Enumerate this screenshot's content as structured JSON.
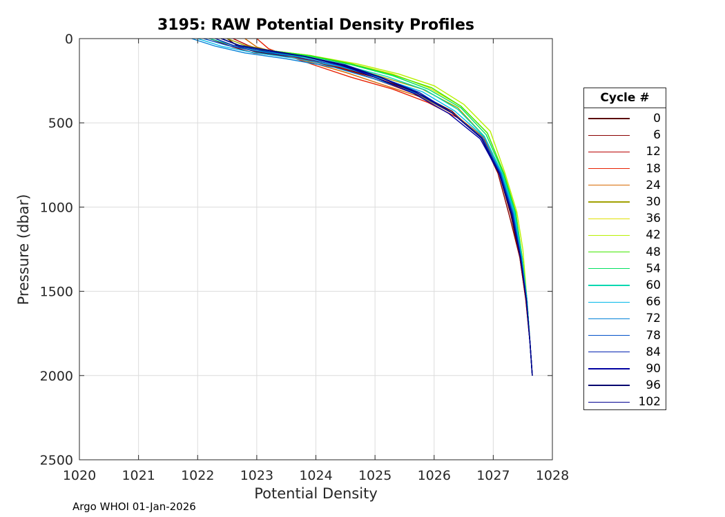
{
  "footer": "Argo WHOI 01-Jan-2026",
  "legend_title": "Cycle #",
  "chart_data": {
    "type": "line",
    "title": "3195: RAW Potential Density Profiles",
    "xlabel": "Potential Density",
    "ylabel": "Pressure (dbar)",
    "xlim": [
      1020,
      1028
    ],
    "ylim": [
      0,
      2500
    ],
    "y_reversed": true,
    "grid": true,
    "legend_position": "outside-right",
    "x_ticks": [
      "1020",
      "1021",
      "1022",
      "1023",
      "1024",
      "1025",
      "1026",
      "1027",
      "1028"
    ],
    "y_ticks": [
      "0",
      "500",
      "1000",
      "1500",
      "2000",
      "2500"
    ],
    "x_tick_values": [
      1020,
      1021,
      1022,
      1023,
      1024,
      1025,
      1026,
      1027,
      1028
    ],
    "y_tick_values": [
      0,
      500,
      1000,
      1500,
      2000,
      2500
    ],
    "series": [
      {
        "name": "0",
        "color": "#5a0000",
        "x": [
          1022.5,
          1022.7,
          1023.0,
          1023.6,
          1024.3,
          1025.0,
          1025.7,
          1026.3,
          1026.8,
          1027.1,
          1027.3,
          1027.45,
          1027.55,
          1027.62,
          1027.66
        ],
        "y": [
          0,
          50,
          80,
          110,
          160,
          230,
          320,
          430,
          590,
          800,
          1050,
          1300,
          1550,
          1800,
          2000
        ]
      },
      {
        "name": "6",
        "color": "#8a0000",
        "x": [
          1022.2,
          1022.6,
          1022.95,
          1023.6,
          1024.3,
          1025.0,
          1025.7,
          1026.3,
          1026.8,
          1027.08,
          1027.28,
          1027.45,
          1027.55,
          1027.62,
          1027.66
        ],
        "y": [
          0,
          50,
          85,
          110,
          165,
          240,
          330,
          440,
          590,
          800,
          1060,
          1300,
          1550,
          1800,
          2000
        ]
      },
      {
        "name": "12",
        "color": "#b80000",
        "x": [
          1022.6,
          1022.85,
          1023.2,
          1023.8,
          1024.4,
          1025.0,
          1025.7,
          1026.3,
          1026.8,
          1027.12,
          1027.33,
          1027.46,
          1027.56,
          1027.62,
          1027.66
        ],
        "y": [
          0,
          40,
          80,
          120,
          170,
          240,
          330,
          440,
          590,
          800,
          1040,
          1300,
          1550,
          1800,
          2000
        ]
      },
      {
        "name": "18",
        "color": "#e82000",
        "x": [
          1023.0,
          1023.2,
          1023.5,
          1024.0,
          1024.6,
          1025.3,
          1025.9,
          1026.4,
          1026.85,
          1027.12,
          1027.32,
          1027.46,
          1027.56,
          1027.62,
          1027.66
        ],
        "y": [
          0,
          60,
          100,
          160,
          230,
          300,
          380,
          470,
          600,
          800,
          1040,
          1300,
          1550,
          1800,
          2000
        ]
      },
      {
        "name": "24",
        "color": "#d66800",
        "x": [
          1022.8,
          1023.0,
          1023.4,
          1023.9,
          1024.5,
          1025.1,
          1025.8,
          1026.35,
          1026.85,
          1027.13,
          1027.34,
          1027.47,
          1027.56,
          1027.62,
          1027.66
        ],
        "y": [
          0,
          50,
          90,
          140,
          200,
          270,
          350,
          450,
          590,
          800,
          1030,
          1300,
          1550,
          1800,
          2000
        ]
      },
      {
        "name": "30",
        "color": "#a0a000",
        "x": [
          1022.5,
          1022.8,
          1023.3,
          1023.9,
          1024.5,
          1025.1,
          1025.8,
          1026.4,
          1026.85,
          1027.15,
          1027.36,
          1027.48,
          1027.57,
          1027.62,
          1027.66
        ],
        "y": [
          0,
          40,
          75,
          110,
          160,
          225,
          300,
          410,
          580,
          800,
          1030,
          1300,
          1550,
          1800,
          2000
        ]
      },
      {
        "name": "36",
        "color": "#e0e000",
        "x": [
          1022.4,
          1022.7,
          1023.2,
          1023.9,
          1024.6,
          1025.3,
          1025.9,
          1026.45,
          1026.9,
          1027.18,
          1027.38,
          1027.49,
          1027.57,
          1027.62,
          1027.66
        ],
        "y": [
          0,
          40,
          70,
          100,
          150,
          210,
          290,
          400,
          560,
          800,
          1030,
          1300,
          1550,
          1800,
          2000
        ]
      },
      {
        "name": "42",
        "color": "#b8f000",
        "x": [
          1022.4,
          1022.7,
          1023.2,
          1023.9,
          1024.7,
          1025.4,
          1026.0,
          1026.5,
          1026.95,
          1027.2,
          1027.4,
          1027.5,
          1027.57,
          1027.62,
          1027.66
        ],
        "y": [
          0,
          40,
          70,
          100,
          150,
          210,
          280,
          390,
          550,
          800,
          1030,
          1250,
          1550,
          1800,
          2000
        ]
      },
      {
        "name": "48",
        "color": "#40e800",
        "x": [
          1022.4,
          1022.7,
          1023.2,
          1023.9,
          1024.6,
          1025.3,
          1025.95,
          1026.45,
          1026.9,
          1027.18,
          1027.38,
          1027.49,
          1027.57,
          1027.62,
          1027.66
        ],
        "y": [
          0,
          40,
          70,
          100,
          150,
          215,
          290,
          400,
          560,
          800,
          1030,
          1300,
          1550,
          1800,
          2000
        ]
      },
      {
        "name": "54",
        "color": "#00e060",
        "x": [
          1022.4,
          1022.7,
          1023.2,
          1023.9,
          1024.6,
          1025.3,
          1025.9,
          1026.45,
          1026.88,
          1027.17,
          1027.37,
          1027.49,
          1027.57,
          1027.62,
          1027.66
        ],
        "y": [
          0,
          40,
          72,
          105,
          155,
          220,
          300,
          410,
          570,
          800,
          1030,
          1300,
          1550,
          1800,
          2000
        ]
      },
      {
        "name": "60",
        "color": "#00d8b0",
        "x": [
          1022.2,
          1022.6,
          1023.1,
          1023.8,
          1024.5,
          1025.2,
          1025.85,
          1026.4,
          1026.85,
          1027.15,
          1027.36,
          1027.48,
          1027.57,
          1027.62,
          1027.66
        ],
        "y": [
          0,
          40,
          75,
          110,
          160,
          225,
          305,
          420,
          580,
          800,
          1030,
          1300,
          1550,
          1800,
          2000
        ]
      },
      {
        "name": "66",
        "color": "#00b8e8",
        "x": [
          1022.0,
          1022.4,
          1022.9,
          1023.6,
          1024.4,
          1025.1,
          1025.8,
          1026.35,
          1026.85,
          1027.14,
          1027.35,
          1027.48,
          1027.57,
          1027.62,
          1027.66
        ],
        "y": [
          0,
          45,
          80,
          115,
          165,
          235,
          315,
          430,
          585,
          800,
          1030,
          1300,
          1550,
          1800,
          2000
        ]
      },
      {
        "name": "72",
        "color": "#0080d8",
        "x": [
          1021.9,
          1022.3,
          1022.8,
          1023.5,
          1024.3,
          1025.0,
          1025.7,
          1026.3,
          1026.82,
          1027.13,
          1027.34,
          1027.47,
          1027.56,
          1027.62,
          1027.66
        ],
        "y": [
          0,
          45,
          85,
          120,
          170,
          240,
          325,
          440,
          590,
          800,
          1040,
          1300,
          1550,
          1800,
          2000
        ]
      },
      {
        "name": "78",
        "color": "#0050c8",
        "x": [
          1022.1,
          1022.5,
          1023.0,
          1023.7,
          1024.4,
          1025.1,
          1025.75,
          1026.3,
          1026.82,
          1027.12,
          1027.33,
          1027.47,
          1027.56,
          1027.62,
          1027.66
        ],
        "y": [
          0,
          40,
          75,
          110,
          160,
          230,
          320,
          440,
          590,
          800,
          1040,
          1300,
          1550,
          1800,
          2000
        ]
      },
      {
        "name": "84",
        "color": "#0020b0",
        "x": [
          1022.3,
          1022.6,
          1023.1,
          1023.8,
          1024.5,
          1025.1,
          1025.75,
          1026.3,
          1026.8,
          1027.11,
          1027.32,
          1027.46,
          1027.56,
          1027.62,
          1027.66
        ],
        "y": [
          0,
          40,
          72,
          105,
          155,
          230,
          320,
          440,
          590,
          800,
          1040,
          1300,
          1550,
          1800,
          2000
        ]
      },
      {
        "name": "90",
        "color": "#0000a0",
        "x": [
          1022.4,
          1022.7,
          1023.2,
          1023.8,
          1024.4,
          1025.0,
          1025.65,
          1026.25,
          1026.78,
          1027.1,
          1027.31,
          1027.46,
          1027.56,
          1027.62,
          1027.66
        ],
        "y": [
          0,
          40,
          70,
          105,
          155,
          230,
          325,
          445,
          595,
          800,
          1040,
          1300,
          1550,
          1800,
          2000
        ]
      },
      {
        "name": "96",
        "color": "#00006e",
        "x": [
          1022.4,
          1022.7,
          1023.2,
          1023.8,
          1024.45,
          1025.05,
          1025.7,
          1026.3,
          1026.8,
          1027.1,
          1027.31,
          1027.46,
          1027.56,
          1027.62,
          1027.66
        ],
        "y": [
          0,
          40,
          70,
          105,
          155,
          225,
          320,
          440,
          590,
          800,
          1040,
          1300,
          1550,
          1800,
          2000
        ]
      },
      {
        "name": "102",
        "color": "#000090",
        "x": [
          1022.4,
          1022.7,
          1023.2,
          1023.8,
          1024.4,
          1025.05,
          1025.7,
          1026.3,
          1026.8,
          1027.1,
          1027.31,
          1027.46,
          1027.56,
          1027.62,
          1027.66
        ],
        "y": [
          0,
          40,
          70,
          105,
          155,
          225,
          320,
          440,
          590,
          800,
          1040,
          1300,
          1550,
          1800,
          2000
        ]
      }
    ]
  }
}
